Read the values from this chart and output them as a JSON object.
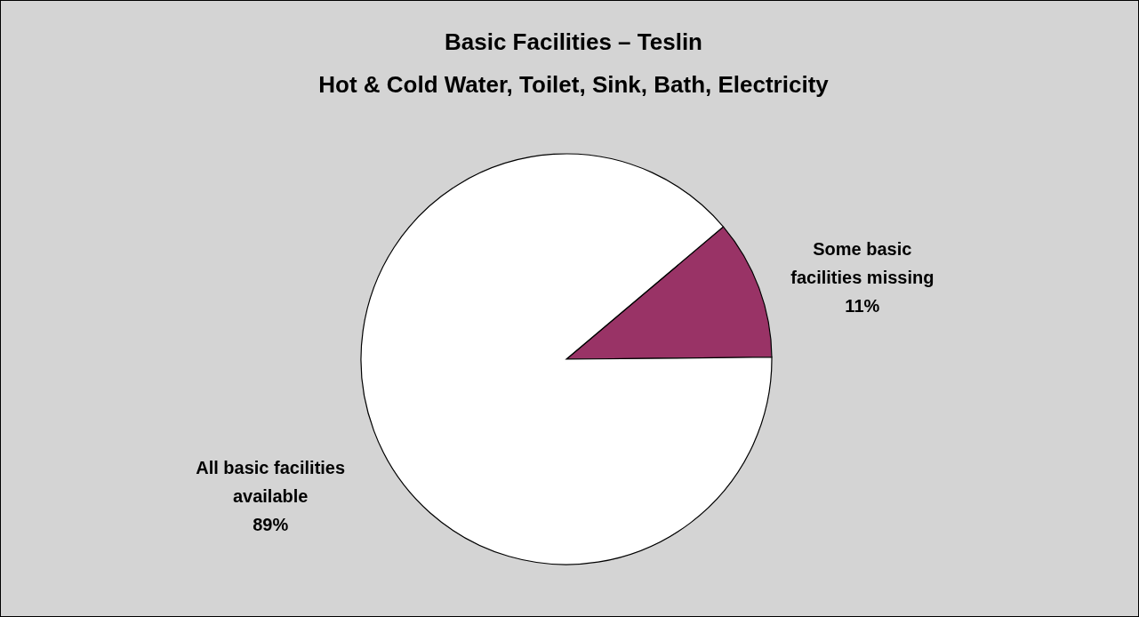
{
  "chart_data": {
    "type": "pie",
    "title": "Basic Facilities – Teslin",
    "subtitle": "Hot & Cold Water, Toilet, Sink, Bath, Electricity",
    "categories": [
      "Some basic facilities missing",
      "All basic facilities available"
    ],
    "values": [
      11,
      89
    ],
    "value_labels": [
      "11%",
      "89%"
    ],
    "colors": [
      "#993366",
      "#ffffff"
    ]
  }
}
